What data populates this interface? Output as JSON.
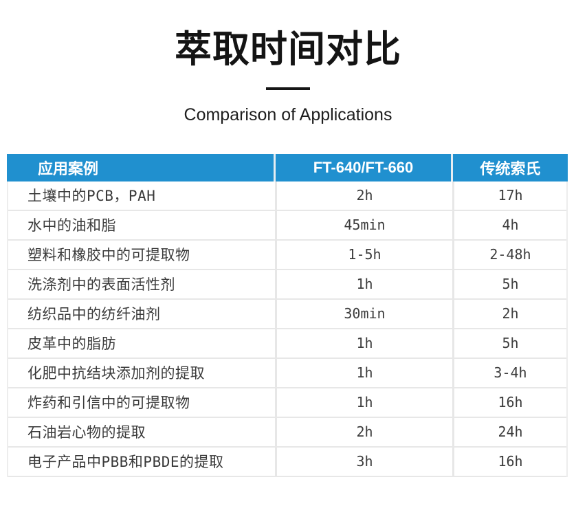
{
  "header": {
    "title": "萃取时间对比",
    "subtitle": "Comparison of Applications"
  },
  "colors": {
    "table_header_bg": "#2090cf",
    "table_header_text": "#ffffff",
    "body_text": "#3a3a3a",
    "grid_line": "#e7e7e7",
    "title_text": "#141414"
  },
  "chart_data": {
    "type": "table",
    "title": "萃取时间对比",
    "subtitle": "Comparison of Applications",
    "columns": [
      "应用案例",
      "FT-640/FT-660",
      "传统索氏"
    ],
    "rows": [
      [
        "土壤中的PCB，PAH",
        "2h",
        "17h"
      ],
      [
        "水中的油和脂",
        "45min",
        "4h"
      ],
      [
        "塑料和橡胶中的可提取物",
        "1-5h",
        "2-48h"
      ],
      [
        "洗涤剂中的表面活性剂",
        "1h",
        "5h"
      ],
      [
        "纺织品中的纺纤油剂",
        "30min",
        "2h"
      ],
      [
        "皮革中的脂肪",
        "1h",
        "5h"
      ],
      [
        "化肥中抗结块添加剂的提取",
        "1h",
        "3-4h"
      ],
      [
        "炸药和引信中的可提取物",
        "1h",
        "16h"
      ],
      [
        "石油岩心物的提取",
        "2h",
        "24h"
      ],
      [
        "电子产品中PBB和PBDE的提取",
        "3h",
        "16h"
      ]
    ]
  }
}
